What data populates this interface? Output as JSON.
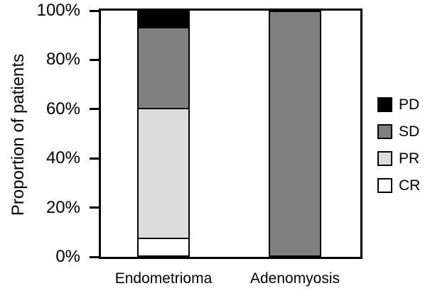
{
  "chart_data": {
    "type": "bar",
    "stacked": true,
    "ylabel": "Proportion of patients",
    "categories": [
      "Endometrioma",
      "Adenomyosis"
    ],
    "series": [
      {
        "name": "PD",
        "color": "#000000",
        "values": [
          6.7,
          0
        ]
      },
      {
        "name": "SD",
        "color": "#808080",
        "values": [
          33.3,
          100
        ]
      },
      {
        "name": "PR",
        "color": "#dcdcdc",
        "values": [
          53.3,
          0
        ]
      },
      {
        "name": "CR",
        "color": "#ffffff",
        "values": [
          6.7,
          0
        ]
      }
    ],
    "stack_order_bottom_to_top": [
      "CR",
      "PR",
      "SD",
      "PD"
    ],
    "ylim": [
      0,
      100
    ],
    "ytick_values": [
      0,
      20,
      40,
      60,
      80,
      100
    ],
    "ytick_labels": [
      "0%",
      "20%",
      "40%",
      "60%",
      "80%",
      "100%"
    ],
    "grid": false,
    "legend_position": "right",
    "legend": [
      {
        "label": "PD",
        "color": "#000000"
      },
      {
        "label": "SD",
        "color": "#808080"
      },
      {
        "label": "PR",
        "color": "#dcdcdc"
      },
      {
        "label": "CR",
        "color": "#ffffff"
      }
    ],
    "axis_color": "#000000",
    "background_color": "#ffffff",
    "segment_edge_color": "#000000"
  }
}
